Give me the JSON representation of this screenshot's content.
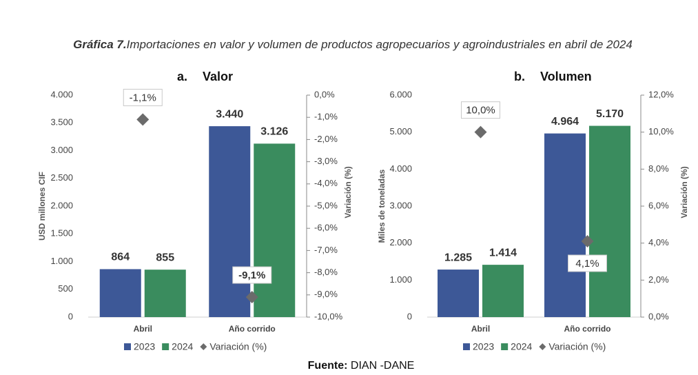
{
  "title_prefix": "Gráfica 7.",
  "title": "Importaciones en valor y volumen de productos agropecuarios y agroindustriales en abril de 2024",
  "source_label": "Fuente:",
  "source": "DIAN -DANE",
  "chart_data": [
    {
      "type": "bar",
      "subtitle_letter": "a.",
      "subtitle": "Valor",
      "ylabel": "USD millones CIF",
      "y2label": "Variación (%)",
      "categories": [
        "Abril",
        "Año corrido"
      ],
      "ylim": [
        0,
        4000
      ],
      "yticks": [
        0,
        500,
        {
          "value": 1000,
          "label": "1.000"
        },
        {
          "value": 1500,
          "label": "1.500"
        },
        {
          "value": 2000,
          "label": "2.000"
        },
        {
          "value": 2500,
          "label": "2.500"
        },
        {
          "value": 3000,
          "label": "3.000"
        },
        {
          "value": 3500,
          "label": "3.500"
        },
        {
          "value": 4000,
          "label": "4.000"
        }
      ],
      "y2lim": [
        -10,
        0
      ],
      "y2ticks": [
        {
          "value": 0,
          "label": "0,0%"
        },
        {
          "value": -1,
          "label": "-1,0%"
        },
        {
          "value": -2,
          "label": "-2,0%"
        },
        {
          "value": -3,
          "label": "-3,0%"
        },
        {
          "value": -4,
          "label": "-4,0%"
        },
        {
          "value": -5,
          "label": "-5,0%"
        },
        {
          "value": -6,
          "label": "-6,0%"
        },
        {
          "value": -7,
          "label": "-7,0%"
        },
        {
          "value": -8,
          "label": "-8,0%"
        },
        {
          "value": -9,
          "label": "-9,0%"
        },
        {
          "value": -10,
          "label": "-10,0%"
        }
      ],
      "series": [
        {
          "name": "2023",
          "color": "#3d5897",
          "values": [
            864,
            3440
          ],
          "value_labels": [
            "864",
            "3.440"
          ]
        },
        {
          "name": "2024",
          "color": "#3a8c5e",
          "values": [
            855,
            3126
          ],
          "value_labels": [
            "855",
            "3.126"
          ]
        },
        {
          "name": "Variación (%)",
          "color": "#6b6b6b",
          "axis": "y2",
          "values": [
            -1.1,
            -9.1
          ],
          "value_labels": [
            "-1,1%",
            "-9,1%"
          ]
        }
      ]
    },
    {
      "type": "bar",
      "subtitle_letter": "b.",
      "subtitle": "Volumen",
      "ylabel": "Miles de toneladas",
      "y2label": "Variación (%)",
      "categories": [
        "Abril",
        "Año corrido"
      ],
      "ylim": [
        0,
        6000
      ],
      "yticks": [
        0,
        {
          "value": 1000,
          "label": "1.000"
        },
        {
          "value": 2000,
          "label": "2.000"
        },
        {
          "value": 3000,
          "label": "3.000"
        },
        {
          "value": 4000,
          "label": "4.000"
        },
        {
          "value": 5000,
          "label": "5.000"
        },
        {
          "value": 6000,
          "label": "6.000"
        }
      ],
      "y2lim": [
        0,
        12
      ],
      "y2ticks": [
        {
          "value": 0,
          "label": "0,0%"
        },
        {
          "value": 2,
          "label": "2,0%"
        },
        {
          "value": 4,
          "label": "4,0%"
        },
        {
          "value": 6,
          "label": "6,0%"
        },
        {
          "value": 8,
          "label": "8,0%"
        },
        {
          "value": 10,
          "label": "10,0%"
        },
        {
          "value": 12,
          "label": "12,0%"
        }
      ],
      "series": [
        {
          "name": "2023",
          "color": "#3d5897",
          "values": [
            1285,
            4964
          ],
          "value_labels": [
            "1.285",
            "4.964"
          ]
        },
        {
          "name": "2024",
          "color": "#3a8c5e",
          "values": [
            1414,
            5170
          ],
          "value_labels": [
            "1.414",
            "5.170"
          ]
        },
        {
          "name": "Variación (%)",
          "color": "#6b6b6b",
          "axis": "y2",
          "values": [
            10.0,
            4.1
          ],
          "value_labels": [
            "10,0%",
            "4,1%"
          ]
        }
      ]
    }
  ]
}
